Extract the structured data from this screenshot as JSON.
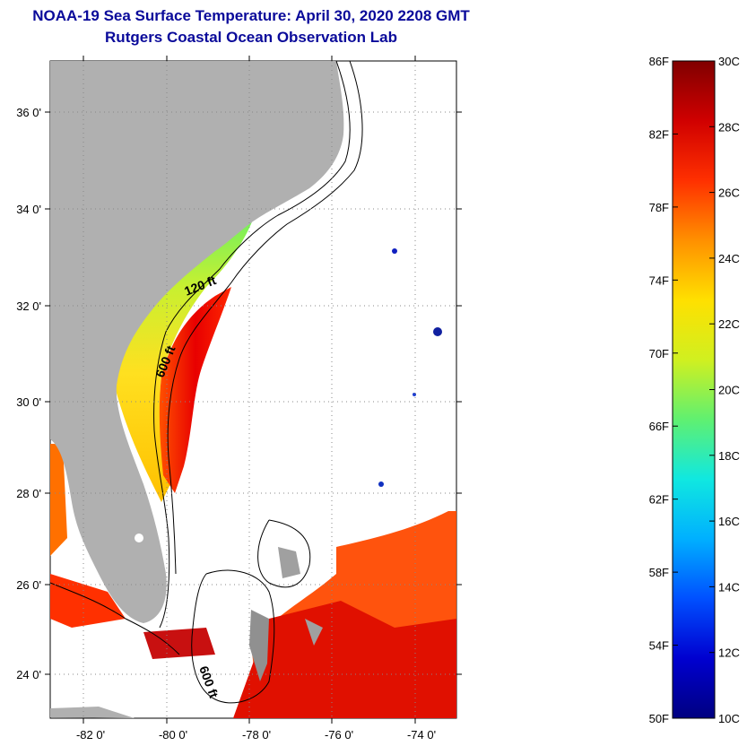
{
  "header": {
    "title": "NOAA-19 Sea Surface Temperature:  April 30, 2020 2208 GMT",
    "subtitle": "Rutgers Coastal Ocean Observation Lab"
  },
  "map": {
    "lat_labels": [
      "36 0'",
      "34 0'",
      "32 0'",
      "30 0'",
      "28 0'",
      "26 0'",
      "24 0'"
    ],
    "lon_labels": [
      "-82 0'",
      "-80 0'",
      "-78 0'",
      "-76 0'",
      "-74 0'"
    ],
    "isobath_labels": [
      "120 ft",
      "600 ft",
      "600 ft"
    ],
    "colors": {
      "land": "#b0b0b0",
      "background": "#ffffff",
      "isobath": "#000000"
    }
  },
  "colorbar": {
    "fahrenheit_labels": [
      "86F",
      "82F",
      "78F",
      "74F",
      "70F",
      "66F",
      "62F",
      "58F",
      "54F",
      "50F"
    ],
    "celsius_labels": [
      "30C",
      "28C",
      "26C",
      "24C",
      "22C",
      "20C",
      "18C",
      "16C",
      "14C",
      "12C",
      "10C"
    ],
    "colors": [
      "#000080",
      "#0000d0",
      "#0050ff",
      "#00b0ff",
      "#10e8e0",
      "#60f070",
      "#d0f020",
      "#ffe000",
      "#ff9000",
      "#ff3000",
      "#d00000",
      "#800000"
    ]
  }
}
